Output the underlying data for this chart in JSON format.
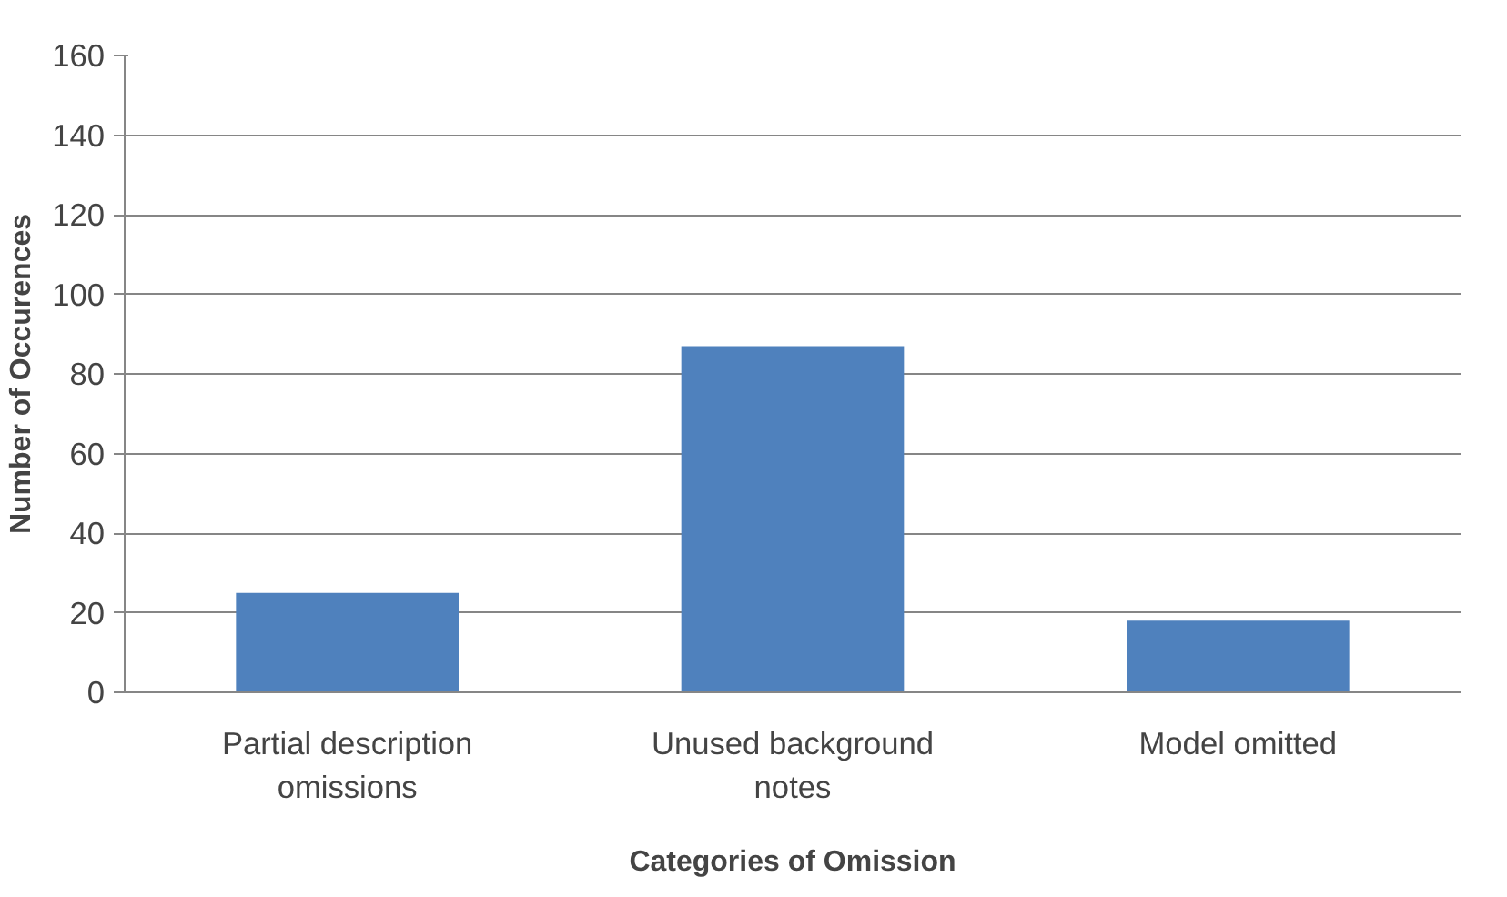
{
  "chart_data": {
    "type": "bar",
    "xlabel": "Categories of Omission",
    "ylabel": "Number of Occurences",
    "categories": [
      "Partial description omissions",
      "Unused background notes",
      "Model omitted"
    ],
    "values": [
      25,
      87,
      18
    ],
    "color": "#4f81bd",
    "ylim": [
      0,
      160
    ],
    "yticks": [
      0,
      20,
      40,
      60,
      80,
      100,
      120,
      140,
      160
    ],
    "grid": "y"
  }
}
